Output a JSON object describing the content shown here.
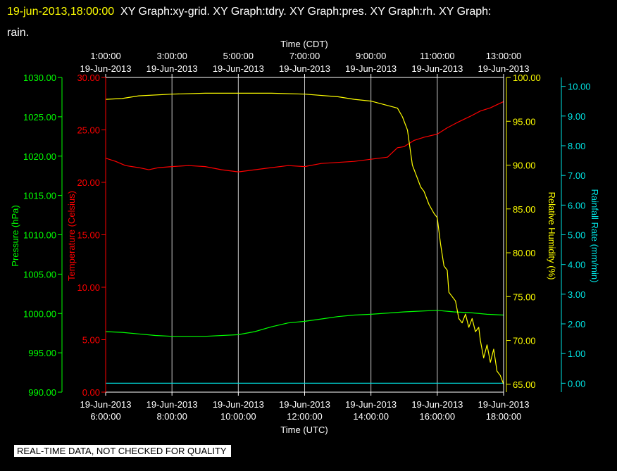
{
  "header": {
    "timestamp": "19-jun-2013,18:00:00",
    "title_line1": "XY Graph:xy-grid.  XY Graph:tdry.  XY Graph:pres.  XY Graph:rh.  XY Graph:",
    "title_line2": "rain."
  },
  "disclaimer": "REAL-TIME DATA, NOT CHECKED FOR QUALITY",
  "colors": {
    "temperature": "#ff0000",
    "pressure": "#00ff00",
    "humidity": "#ffff00",
    "rainfall": "#00e5e5",
    "grid": "#c8c8c8",
    "frame": "#ffffff"
  },
  "chart_data": {
    "type": "line",
    "top_axis": {
      "label": "Time (CDT)",
      "ticks": [
        {
          "time": "1:00:00",
          "date": "19-Jun-2013"
        },
        {
          "time": "3:00:00",
          "date": "19-Jun-2013"
        },
        {
          "time": "5:00:00",
          "date": "19-Jun-2013"
        },
        {
          "time": "7:00:00",
          "date": "19-Jun-2013"
        },
        {
          "time": "9:00:00",
          "date": "19-Jun-2013"
        },
        {
          "time": "11:00:00",
          "date": "19-Jun-2013"
        },
        {
          "time": "13:00:00",
          "date": "19-Jun-2013"
        }
      ]
    },
    "bottom_axis": {
      "label": "Time (UTC)",
      "range": [
        6,
        18
      ],
      "ticks": [
        {
          "value": 6,
          "date": "19-Jun-2013",
          "time": "6:00:00"
        },
        {
          "value": 8,
          "date": "19-Jun-2013",
          "time": "8:00:00"
        },
        {
          "value": 10,
          "date": "19-Jun-2013",
          "time": "10:00:00"
        },
        {
          "value": 12,
          "date": "19-Jun-2013",
          "time": "12:00:00"
        },
        {
          "value": 14,
          "date": "19-Jun-2013",
          "time": "14:00:00"
        },
        {
          "value": 16,
          "date": "19-Jun-2013",
          "time": "16:00:00"
        },
        {
          "value": 18,
          "date": "19-Jun-2013",
          "time": "18:00:00"
        }
      ]
    },
    "y_axes": {
      "pressure": {
        "label": "Pressure (hPa)",
        "range": [
          990,
          1030
        ],
        "ticks": [
          "990.00",
          "995.00",
          "1000.00",
          "1005.00",
          "1010.00",
          "1015.00",
          "1020.00",
          "1025.00",
          "1030.00"
        ]
      },
      "temperature": {
        "label": "Temperature (Celsius)",
        "range": [
          0,
          30
        ],
        "ticks": [
          "0.00",
          "5.00",
          "10.00",
          "15.00",
          "20.00",
          "25.00",
          "30.00"
        ]
      },
      "humidity": {
        "label": "Relative Humidity (%)",
        "range": [
          64.1,
          100
        ],
        "ticks": [
          "65.00",
          "70.00",
          "75.00",
          "80.00",
          "85.00",
          "90.00",
          "95.00",
          "100.00"
        ]
      },
      "rainfall": {
        "label": "Rainfall Rate (mm/min)",
        "range": [
          -0.3,
          10.3
        ],
        "ticks": [
          "0.00",
          "1.00",
          "2.00",
          "3.00",
          "4.00",
          "5.00",
          "6.00",
          "7.00",
          "8.00",
          "9.00",
          "10.00"
        ]
      }
    },
    "series": [
      {
        "key": "temperature",
        "axis": "temperature",
        "x": [
          6.0,
          6.3,
          6.6,
          7.0,
          7.3,
          7.6,
          8.0,
          8.5,
          9.0,
          9.5,
          10.0,
          10.5,
          11.0,
          11.5,
          12.0,
          12.5,
          13.0,
          13.5,
          14.0,
          14.5,
          14.8,
          15.0,
          15.3,
          15.6,
          16.0,
          16.3,
          16.6,
          17.0,
          17.3,
          17.6,
          17.8,
          18.0
        ],
        "y": [
          22.3,
          22.0,
          21.6,
          21.4,
          21.2,
          21.4,
          21.5,
          21.6,
          21.5,
          21.2,
          21.0,
          21.2,
          21.4,
          21.6,
          21.5,
          21.8,
          21.9,
          22.0,
          22.2,
          22.4,
          23.3,
          23.4,
          24.0,
          24.3,
          24.6,
          25.2,
          25.7,
          26.3,
          26.8,
          27.1,
          27.4,
          27.7
        ]
      },
      {
        "key": "pressure",
        "axis": "pressure",
        "x": [
          6.0,
          6.5,
          7.0,
          7.5,
          8.0,
          9.0,
          10.0,
          10.5,
          11.0,
          11.5,
          12.0,
          12.5,
          13.0,
          13.5,
          14.0,
          15.0,
          15.5,
          16.0,
          16.5,
          17.0,
          17.5,
          18.0
        ],
        "y": [
          997.7,
          997.6,
          997.4,
          997.2,
          997.1,
          997.1,
          997.3,
          997.7,
          998.3,
          998.8,
          999.0,
          999.3,
          999.6,
          999.8,
          999.9,
          1000.2,
          1000.3,
          1000.4,
          1000.2,
          1000.1,
          999.9,
          999.8
        ]
      },
      {
        "key": "humidity",
        "axis": "humidity",
        "x": [
          6.0,
          6.5,
          7.0,
          8.0,
          9.0,
          10.0,
          11.0,
          12.0,
          13.0,
          13.5,
          14.0,
          14.5,
          14.8,
          14.95,
          15.1,
          15.25,
          15.4,
          15.5,
          15.6,
          15.75,
          15.9,
          16.0,
          16.1,
          16.2,
          16.3,
          16.35,
          16.45,
          16.55,
          16.65,
          16.75,
          16.85,
          16.95,
          17.05,
          17.15,
          17.25,
          17.3,
          17.4,
          17.5,
          17.6,
          17.7,
          17.8,
          17.9,
          18.0
        ],
        "y": [
          97.5,
          97.6,
          97.9,
          98.1,
          98.2,
          98.2,
          98.2,
          98.1,
          97.8,
          97.5,
          97.3,
          96.8,
          96.5,
          95.5,
          94.0,
          90.0,
          88.5,
          87.5,
          87.0,
          85.5,
          84.5,
          84.0,
          81.0,
          78.5,
          78.0,
          75.5,
          75.0,
          74.5,
          72.5,
          72.0,
          73.0,
          71.5,
          72.5,
          71.0,
          71.5,
          70.0,
          68.0,
          69.5,
          67.5,
          69.0,
          66.5,
          66.0,
          65.0
        ]
      },
      {
        "key": "rainfall",
        "axis": "rainfall",
        "x": [
          6.0,
          18.0
        ],
        "y": [
          0.0,
          0.0
        ]
      }
    ]
  }
}
